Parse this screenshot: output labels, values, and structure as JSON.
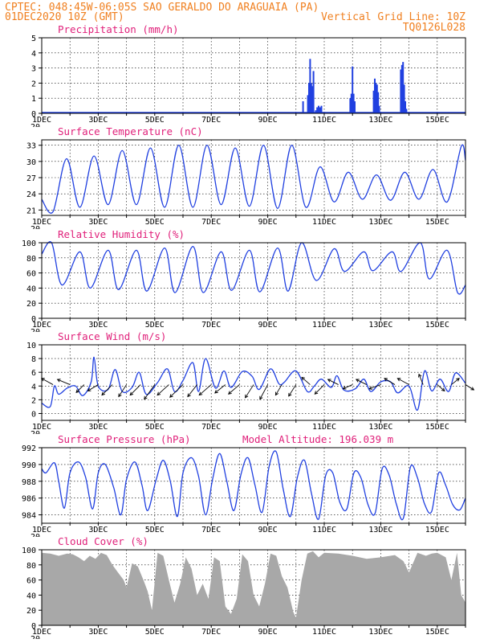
{
  "header": {
    "line1": "CPTEC:   048:45W-06:05S  SAO GERALDO DO ARAGUAIA (PA)",
    "line2_left": "01DEC2020 10Z (GMT)",
    "line2_right": "Vertical Grid Line: 10Z",
    "line3_right": "TQ0126L028"
  },
  "colors": {
    "header": "#f08020",
    "title": "#e0207a",
    "line": "#2040e0",
    "cloud": "#a8a8a8"
  },
  "x_axis": {
    "labels": [
      "1DEC",
      "3DEC",
      "5DEC",
      "7DEC",
      "9DEC",
      "11DEC",
      "13DEC",
      "15DEC"
    ],
    "cutoff": "20"
  },
  "chart_data": [
    {
      "type": "bar",
      "title": "Precipitation (mm/h)",
      "ylim": [
        0,
        5
      ],
      "yticks": [
        0,
        1,
        2,
        3,
        4,
        5
      ],
      "x_range_days": [
        1,
        16
      ],
      "x": [
        10.25,
        10.42,
        10.46,
        10.5,
        10.54,
        10.58,
        10.62,
        10.7,
        10.75,
        10.8,
        10.85,
        10.9,
        11.92,
        11.96,
        12.0,
        12.04,
        12.08,
        12.75,
        12.79,
        12.83,
        12.87,
        12.91,
        12.95,
        13.71,
        13.75,
        13.79,
        13.83,
        13.87,
        13.91
      ],
      "values": [
        0.8,
        1.2,
        2.0,
        3.6,
        2.0,
        1.8,
        2.8,
        0.2,
        0.4,
        0.5,
        0.4,
        0.5,
        1.0,
        1.3,
        3.1,
        1.3,
        0.8,
        1.5,
        2.3,
        2.0,
        1.9,
        1.4,
        0.5,
        2.9,
        3.2,
        3.4,
        1.9,
        0.8,
        0.3
      ]
    },
    {
      "type": "line",
      "title": "Surface Temperature (nC)",
      "ylim": [
        20,
        34
      ],
      "yticks": [
        21,
        24,
        27,
        30,
        33
      ],
      "x_range_days": [
        1,
        16
      ],
      "max_times": [
        1.88,
        2.85,
        3.85,
        4.85,
        5.85,
        6.85,
        7.85,
        8.85,
        9.85,
        10.85,
        11.85,
        12.85,
        13.85,
        14.85,
        15.85
      ],
      "max_values": [
        30.5,
        31.0,
        32.0,
        32.5,
        33.0,
        33.0,
        32.5,
        33.0,
        33.0,
        29.0,
        28.0,
        27.5,
        28.0,
        28.5,
        32.8
      ],
      "min_times": [
        1.4,
        2.35,
        3.35,
        4.35,
        5.35,
        6.35,
        7.35,
        8.35,
        9.35,
        10.35,
        11.35,
        12.35,
        13.35,
        14.35,
        15.35
      ],
      "min_values": [
        20.7,
        21.5,
        22.0,
        22.0,
        21.5,
        21.5,
        22.0,
        21.7,
        21.3,
        21.5,
        22.5,
        23.0,
        22.8,
        23.0,
        22.5
      ],
      "start_value": 23.0,
      "end_value": 30.2
    },
    {
      "type": "line",
      "title": "Relative Humidity (%)",
      "ylim": [
        0,
        100
      ],
      "yticks": [
        0,
        20,
        40,
        60,
        80,
        100
      ],
      "x_range_days": [
        1,
        16
      ],
      "max_times": [
        1.35,
        2.35,
        3.35,
        4.35,
        5.35,
        6.35,
        7.35,
        8.35,
        9.35,
        10.2,
        11.35,
        12.4,
        13.4,
        14.4,
        15.35
      ],
      "max_values": [
        100,
        88,
        90,
        90,
        93,
        95,
        88,
        90,
        93,
        100,
        92,
        88,
        88,
        100,
        90
      ],
      "min_times": [
        1.72,
        2.72,
        3.72,
        4.72,
        5.72,
        6.72,
        7.72,
        8.72,
        9.72,
        10.72,
        11.72,
        12.72,
        13.72,
        14.72,
        15.72
      ],
      "min_values": [
        44,
        40,
        38,
        36,
        34,
        34,
        37,
        35,
        36,
        50,
        62,
        63,
        62,
        52,
        34
      ],
      "start_value": 85,
      "end_value": 44
    },
    {
      "type": "line",
      "title": "Surface Wind (m/s)",
      "ylim": [
        -1,
        10
      ],
      "yticks": [
        0,
        2,
        4,
        6,
        8,
        10
      ],
      "x_range_days": [
        1,
        16
      ],
      "x": [
        1.0,
        1.3,
        1.45,
        1.6,
        1.9,
        2.2,
        2.45,
        2.75,
        2.85,
        3.0,
        3.35,
        3.6,
        3.85,
        4.2,
        4.45,
        4.7,
        5.1,
        5.45,
        5.7,
        6.0,
        6.35,
        6.55,
        6.8,
        7.15,
        7.45,
        7.7,
        8.1,
        8.45,
        8.7,
        9.1,
        9.4,
        9.6,
        10.0,
        10.4,
        10.65,
        10.9,
        11.25,
        11.45,
        11.7,
        12.1,
        12.4,
        12.65,
        13.0,
        13.35,
        13.6,
        14.0,
        14.3,
        14.55,
        14.8,
        15.1,
        15.4,
        15.65,
        16.0
      ],
      "values": [
        1.5,
        1.0,
        4.0,
        2.8,
        3.7,
        4.0,
        2.6,
        4.6,
        8.2,
        4.0,
        3.5,
        6.4,
        3.2,
        3.8,
        6.0,
        2.8,
        4.5,
        6.5,
        3.2,
        4.8,
        7.4,
        3.2,
        8.0,
        3.7,
        6.2,
        3.8,
        6.1,
        5.4,
        3.5,
        6.5,
        4.3,
        4.6,
        6.2,
        3.2,
        4.0,
        5.0,
        3.8,
        5.5,
        3.4,
        3.6,
        5.0,
        3.2,
        4.6,
        4.6,
        3.0,
        4.0,
        0.5,
        6.2,
        3.3,
        5.0,
        3.2,
        5.9,
        4.4
      ],
      "vectors": [
        {
          "x": 1.4,
          "u": -2.2,
          "v": 1.2
        },
        {
          "x": 2.0,
          "u": -2.4,
          "v": 1.0
        },
        {
          "x": 2.5,
          "u": -1.5,
          "v": -1.5
        },
        {
          "x": 3.0,
          "u": -2.0,
          "v": -1.2
        },
        {
          "x": 3.5,
          "u": -2.0,
          "v": -2.0
        },
        {
          "x": 4.0,
          "u": -1.5,
          "v": -2.3
        },
        {
          "x": 4.5,
          "u": -2.0,
          "v": -2.0
        },
        {
          "x": 5.0,
          "u": -2.0,
          "v": -2.8
        },
        {
          "x": 5.5,
          "u": -2.2,
          "v": -2.0
        },
        {
          "x": 6.0,
          "u": -2.5,
          "v": -2.4
        },
        {
          "x": 6.5,
          "u": -1.8,
          "v": -2.3
        },
        {
          "x": 7.0,
          "u": -2.3,
          "v": -2.0
        },
        {
          "x": 7.5,
          "u": -2.0,
          "v": -1.6
        },
        {
          "x": 8.0,
          "u": -2.1,
          "v": -1.8
        },
        {
          "x": 8.5,
          "u": -1.6,
          "v": -2.5
        },
        {
          "x": 9.0,
          "u": -1.5,
          "v": -2.8
        },
        {
          "x": 9.5,
          "u": -1.2,
          "v": -2.0
        },
        {
          "x": 10.0,
          "u": -1.4,
          "v": -2.2
        },
        {
          "x": 10.5,
          "u": -1.6,
          "v": 1.4
        },
        {
          "x": 11.0,
          "u": -1.8,
          "v": -1.8
        },
        {
          "x": 11.5,
          "u": -2.0,
          "v": 1.0
        },
        {
          "x": 12.0,
          "u": -1.8,
          "v": -0.8
        },
        {
          "x": 12.5,
          "u": -2.0,
          "v": 1.0
        },
        {
          "x": 13.0,
          "u": -2.2,
          "v": -0.8
        },
        {
          "x": 13.5,
          "u": -2.0,
          "v": 1.2
        },
        {
          "x": 14.0,
          "u": -2.2,
          "v": 1.2
        },
        {
          "x": 14.5,
          "u": -0.8,
          "v": 2.0
        },
        {
          "x": 15.0,
          "u": 1.4,
          "v": -1.2
        },
        {
          "x": 15.5,
          "u": 1.5,
          "v": 1.2
        },
        {
          "x": 16.0,
          "u": 1.6,
          "v": -1.0
        }
      ]
    },
    {
      "type": "line",
      "title": "Surface Pressure (hPa)",
      "annotation": "Model Altitude: 196.039 m",
      "ylim": [
        983,
        992
      ],
      "yticks": [
        984,
        986,
        988,
        990,
        992
      ],
      "x_range_days": [
        1,
        16
      ],
      "x": [
        1.0,
        1.15,
        1.45,
        1.6,
        1.8,
        2.0,
        2.3,
        2.55,
        2.8,
        3.0,
        3.25,
        3.55,
        3.8,
        4.0,
        4.3,
        4.55,
        4.75,
        5.05,
        5.3,
        5.55,
        5.8,
        6.0,
        6.3,
        6.55,
        6.8,
        7.05,
        7.3,
        7.55,
        7.8,
        8.05,
        8.3,
        8.55,
        8.8,
        9.05,
        9.3,
        9.55,
        9.8,
        10.05,
        10.3,
        10.55,
        10.8,
        11.05,
        11.3,
        11.55,
        11.8,
        12.05,
        12.3,
        12.55,
        12.8,
        13.05,
        13.3,
        13.55,
        13.8,
        14.05,
        14.3,
        14.55,
        14.8,
        15.05,
        15.3,
        15.55,
        15.8,
        16.0
      ],
      "values": [
        989.5,
        989.0,
        990.2,
        988.0,
        984.8,
        989.0,
        990.3,
        988.5,
        984.7,
        989.0,
        990.0,
        987.2,
        984.0,
        988.2,
        990.3,
        987.5,
        984.5,
        988.2,
        990.5,
        988.0,
        983.8,
        989.0,
        990.8,
        988.6,
        984.0,
        988.3,
        991.3,
        988.0,
        984.5,
        988.8,
        990.8,
        987.5,
        984.3,
        989.8,
        991.5,
        987.0,
        983.8,
        988.5,
        990.5,
        986.5,
        983.5,
        988.7,
        989.0,
        985.5,
        984.7,
        989.0,
        988.4,
        985.2,
        984.2,
        989.5,
        988.7,
        985.3,
        983.6,
        989.7,
        988.4,
        985.3,
        984.4,
        989.0,
        987.5,
        985.2,
        984.6,
        986.0
      ]
    },
    {
      "type": "area",
      "title": "Cloud Cover (%)",
      "ylim": [
        0,
        100
      ],
      "yticks": [
        0,
        20,
        40,
        60,
        80,
        100
      ],
      "x_range_days": [
        1,
        16
      ],
      "x": [
        1.0,
        1.3,
        1.6,
        1.9,
        2.1,
        2.3,
        2.5,
        2.7,
        2.9,
        3.1,
        3.3,
        3.5,
        3.7,
        3.9,
        4.0,
        4.2,
        4.4,
        4.6,
        4.75,
        4.9,
        5.1,
        5.3,
        5.5,
        5.7,
        5.9,
        6.1,
        6.3,
        6.5,
        6.7,
        6.9,
        7.1,
        7.3,
        7.5,
        7.7,
        7.9,
        8.1,
        8.3,
        8.5,
        8.7,
        8.9,
        9.1,
        9.3,
        9.5,
        9.7,
        9.9,
        10.0,
        10.2,
        10.4,
        10.6,
        10.8,
        11.0,
        11.5,
        12.0,
        12.5,
        13.0,
        13.5,
        13.8,
        14.0,
        14.3,
        14.6,
        14.8,
        15.0,
        15.3,
        15.5,
        15.7,
        15.85,
        16.0
      ],
      "values": [
        96,
        95,
        92,
        95,
        94,
        90,
        85,
        92,
        88,
        96,
        93,
        80,
        70,
        60,
        50,
        82,
        78,
        60,
        45,
        20,
        96,
        92,
        60,
        30,
        55,
        90,
        75,
        40,
        55,
        35,
        90,
        85,
        25,
        15,
        35,
        94,
        85,
        40,
        25,
        55,
        95,
        92,
        65,
        50,
        18,
        10,
        60,
        95,
        98,
        90,
        96,
        95,
        92,
        88,
        90,
        93,
        85,
        70,
        96,
        92,
        95,
        96,
        90,
        60,
        96,
        40,
        30
      ]
    }
  ]
}
